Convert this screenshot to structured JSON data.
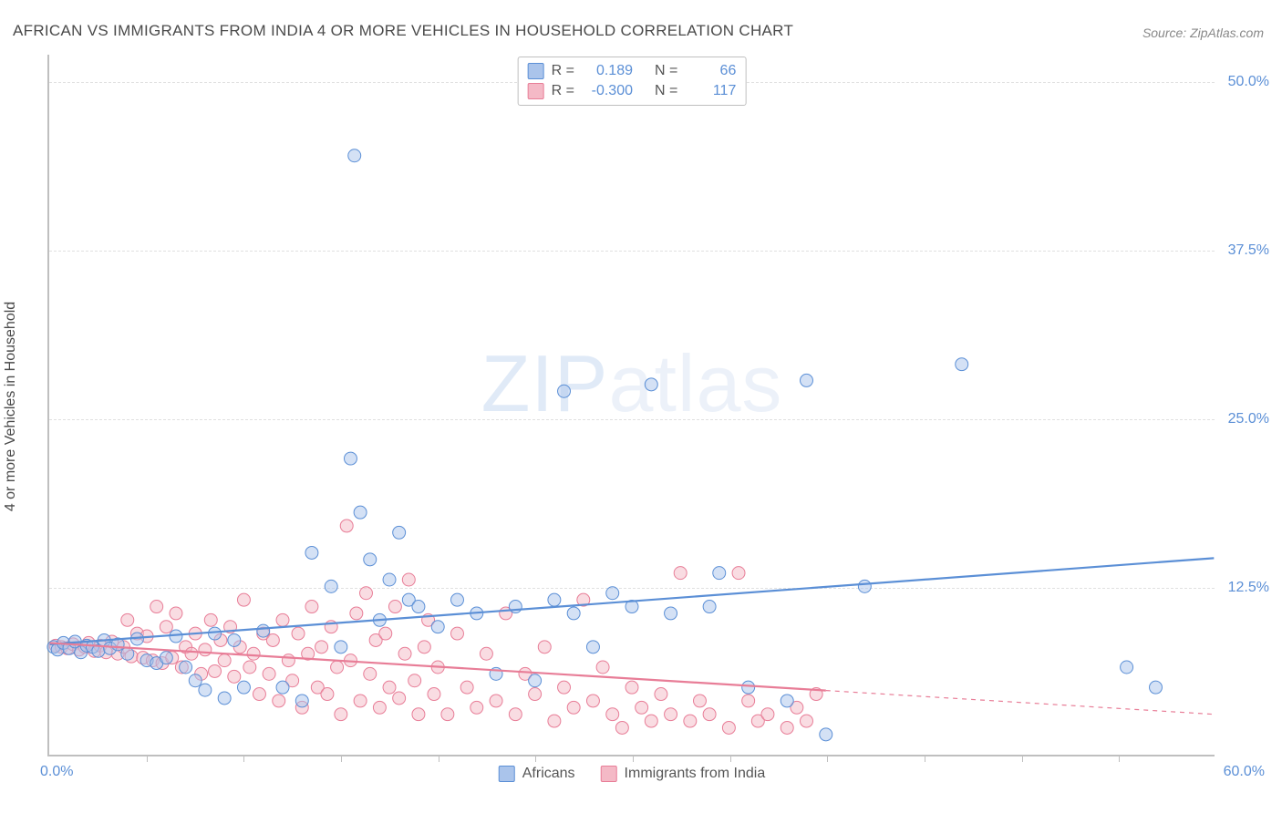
{
  "title": "AFRICAN VS IMMIGRANTS FROM INDIA 4 OR MORE VEHICLES IN HOUSEHOLD CORRELATION CHART",
  "source": "Source: ZipAtlas.com",
  "ylabel": "4 or more Vehicles in Household",
  "watermark": "ZIPatlas",
  "chart": {
    "type": "scatter",
    "xlim": [
      0,
      60
    ],
    "ylim": [
      0,
      52
    ],
    "xtick_positions": [
      5,
      10,
      15,
      20,
      25,
      30,
      35,
      40,
      45,
      50,
      55
    ],
    "yticks": [
      {
        "v": 12.5,
        "label": "12.5%"
      },
      {
        "v": 25.0,
        "label": "25.0%"
      },
      {
        "v": 37.5,
        "label": "37.5%"
      },
      {
        "v": 50.0,
        "label": "50.0%"
      }
    ],
    "xaxis_min_label": "0.0%",
    "xaxis_max_label": "60.0%",
    "background_color": "#ffffff",
    "grid_color": "#e0e0e0",
    "axis_color": "#bfbfbf",
    "label_color": "#5b8fd6",
    "point_radius": 7,
    "point_opacity": 0.5,
    "line_width": 2.2
  },
  "series": [
    {
      "key": "africans",
      "name": "Africans",
      "color_fill": "#aac4eb",
      "color_stroke": "#5b8fd6",
      "r_label": "R =",
      "r_value": "0.189",
      "n_label": "N =",
      "n_value": "66",
      "trend": {
        "x1": 0,
        "y1": 8.2,
        "x2": 60,
        "y2": 14.6,
        "solid_until_x": 60
      },
      "points": [
        [
          0.2,
          8.0
        ],
        [
          0.4,
          7.8
        ],
        [
          0.7,
          8.3
        ],
        [
          1.0,
          7.9
        ],
        [
          1.3,
          8.4
        ],
        [
          1.6,
          7.6
        ],
        [
          1.9,
          8.1
        ],
        [
          2.2,
          8.0
        ],
        [
          2.5,
          7.7
        ],
        [
          2.8,
          8.5
        ],
        [
          3.1,
          7.9
        ],
        [
          3.5,
          8.2
        ],
        [
          4.0,
          7.5
        ],
        [
          4.5,
          8.6
        ],
        [
          5.0,
          7.0
        ],
        [
          5.5,
          6.8
        ],
        [
          6.0,
          7.2
        ],
        [
          6.5,
          8.8
        ],
        [
          7.0,
          6.5
        ],
        [
          7.5,
          5.5
        ],
        [
          8.0,
          4.8
        ],
        [
          8.5,
          9.0
        ],
        [
          9.0,
          4.2
        ],
        [
          9.5,
          8.5
        ],
        [
          10.0,
          5.0
        ],
        [
          11.0,
          9.2
        ],
        [
          12.0,
          5.0
        ],
        [
          13.0,
          4.0
        ],
        [
          13.5,
          15.0
        ],
        [
          14.5,
          12.5
        ],
        [
          15.0,
          8.0
        ],
        [
          15.5,
          22.0
        ],
        [
          15.7,
          44.5
        ],
        [
          16.0,
          18.0
        ],
        [
          16.5,
          14.5
        ],
        [
          17.0,
          10.0
        ],
        [
          17.5,
          13.0
        ],
        [
          18.0,
          16.5
        ],
        [
          18.5,
          11.5
        ],
        [
          19.0,
          11.0
        ],
        [
          20.0,
          9.5
        ],
        [
          21.0,
          11.5
        ],
        [
          22.0,
          10.5
        ],
        [
          23.0,
          6.0
        ],
        [
          24.0,
          11.0
        ],
        [
          25.0,
          5.5
        ],
        [
          26.0,
          11.5
        ],
        [
          26.5,
          27.0
        ],
        [
          27.0,
          10.5
        ],
        [
          28.0,
          8.0
        ],
        [
          29.0,
          12.0
        ],
        [
          30.0,
          11.0
        ],
        [
          31.0,
          27.5
        ],
        [
          32.0,
          10.5
        ],
        [
          34.0,
          11.0
        ],
        [
          34.5,
          13.5
        ],
        [
          36.0,
          5.0
        ],
        [
          38.0,
          4.0
        ],
        [
          39.0,
          27.8
        ],
        [
          40.0,
          1.5
        ],
        [
          42.0,
          12.5
        ],
        [
          47.0,
          29.0
        ],
        [
          55.5,
          6.5
        ],
        [
          57.0,
          5.0
        ]
      ]
    },
    {
      "key": "india",
      "name": "Immigrants from India",
      "color_fill": "#f4b9c6",
      "color_stroke": "#e87d97",
      "r_label": "R =",
      "r_value": "-0.300",
      "n_label": "N =",
      "n_value": "117",
      "trend": {
        "x1": 0,
        "y1": 8.3,
        "x2": 60,
        "y2": 3.0,
        "solid_until_x": 40
      },
      "points": [
        [
          0.3,
          8.1
        ],
        [
          0.6,
          8.0
        ],
        [
          0.9,
          7.9
        ],
        [
          1.2,
          8.2
        ],
        [
          1.5,
          7.8
        ],
        [
          1.8,
          8.0
        ],
        [
          2.0,
          8.3
        ],
        [
          2.3,
          7.7
        ],
        [
          2.6,
          8.1
        ],
        [
          2.9,
          7.6
        ],
        [
          3.2,
          8.4
        ],
        [
          3.5,
          7.5
        ],
        [
          3.8,
          8.0
        ],
        [
          4.0,
          10.0
        ],
        [
          4.2,
          7.3
        ],
        [
          4.5,
          9.0
        ],
        [
          4.8,
          7.2
        ],
        [
          5.0,
          8.8
        ],
        [
          5.3,
          7.0
        ],
        [
          5.5,
          11.0
        ],
        [
          5.8,
          6.8
        ],
        [
          6.0,
          9.5
        ],
        [
          6.3,
          7.2
        ],
        [
          6.5,
          10.5
        ],
        [
          6.8,
          6.5
        ],
        [
          7.0,
          8.0
        ],
        [
          7.3,
          7.5
        ],
        [
          7.5,
          9.0
        ],
        [
          7.8,
          6.0
        ],
        [
          8.0,
          7.8
        ],
        [
          8.3,
          10.0
        ],
        [
          8.5,
          6.2
        ],
        [
          8.8,
          8.5
        ],
        [
          9.0,
          7.0
        ],
        [
          9.3,
          9.5
        ],
        [
          9.5,
          5.8
        ],
        [
          9.8,
          8.0
        ],
        [
          10.0,
          11.5
        ],
        [
          10.3,
          6.5
        ],
        [
          10.5,
          7.5
        ],
        [
          10.8,
          4.5
        ],
        [
          11.0,
          9.0
        ],
        [
          11.3,
          6.0
        ],
        [
          11.5,
          8.5
        ],
        [
          11.8,
          4.0
        ],
        [
          12.0,
          10.0
        ],
        [
          12.3,
          7.0
        ],
        [
          12.5,
          5.5
        ],
        [
          12.8,
          9.0
        ],
        [
          13.0,
          3.5
        ],
        [
          13.3,
          7.5
        ],
        [
          13.5,
          11.0
        ],
        [
          13.8,
          5.0
        ],
        [
          14.0,
          8.0
        ],
        [
          14.3,
          4.5
        ],
        [
          14.5,
          9.5
        ],
        [
          14.8,
          6.5
        ],
        [
          15.0,
          3.0
        ],
        [
          15.3,
          17.0
        ],
        [
          15.5,
          7.0
        ],
        [
          15.8,
          10.5
        ],
        [
          16.0,
          4.0
        ],
        [
          16.3,
          12.0
        ],
        [
          16.5,
          6.0
        ],
        [
          16.8,
          8.5
        ],
        [
          17.0,
          3.5
        ],
        [
          17.3,
          9.0
        ],
        [
          17.5,
          5.0
        ],
        [
          17.8,
          11.0
        ],
        [
          18.0,
          4.2
        ],
        [
          18.3,
          7.5
        ],
        [
          18.5,
          13.0
        ],
        [
          18.8,
          5.5
        ],
        [
          19.0,
          3.0
        ],
        [
          19.3,
          8.0
        ],
        [
          19.5,
          10.0
        ],
        [
          19.8,
          4.5
        ],
        [
          20.0,
          6.5
        ],
        [
          20.5,
          3.0
        ],
        [
          21.0,
          9.0
        ],
        [
          21.5,
          5.0
        ],
        [
          22.0,
          3.5
        ],
        [
          22.5,
          7.5
        ],
        [
          23.0,
          4.0
        ],
        [
          23.5,
          10.5
        ],
        [
          24.0,
          3.0
        ],
        [
          24.5,
          6.0
        ],
        [
          25.0,
          4.5
        ],
        [
          25.5,
          8.0
        ],
        [
          26.0,
          2.5
        ],
        [
          26.5,
          5.0
        ],
        [
          27.0,
          3.5
        ],
        [
          27.5,
          11.5
        ],
        [
          28.0,
          4.0
        ],
        [
          28.5,
          6.5
        ],
        [
          29.0,
          3.0
        ],
        [
          29.5,
          2.0
        ],
        [
          30.0,
          5.0
        ],
        [
          30.5,
          3.5
        ],
        [
          31.0,
          2.5
        ],
        [
          31.5,
          4.5
        ],
        [
          32.0,
          3.0
        ],
        [
          32.5,
          13.5
        ],
        [
          33.0,
          2.5
        ],
        [
          33.5,
          4.0
        ],
        [
          34.0,
          3.0
        ],
        [
          35.0,
          2.0
        ],
        [
          35.5,
          13.5
        ],
        [
          36.0,
          4.0
        ],
        [
          36.5,
          2.5
        ],
        [
          37.0,
          3.0
        ],
        [
          38.0,
          2.0
        ],
        [
          38.5,
          3.5
        ],
        [
          39.0,
          2.5
        ],
        [
          39.5,
          4.5
        ]
      ]
    }
  ]
}
